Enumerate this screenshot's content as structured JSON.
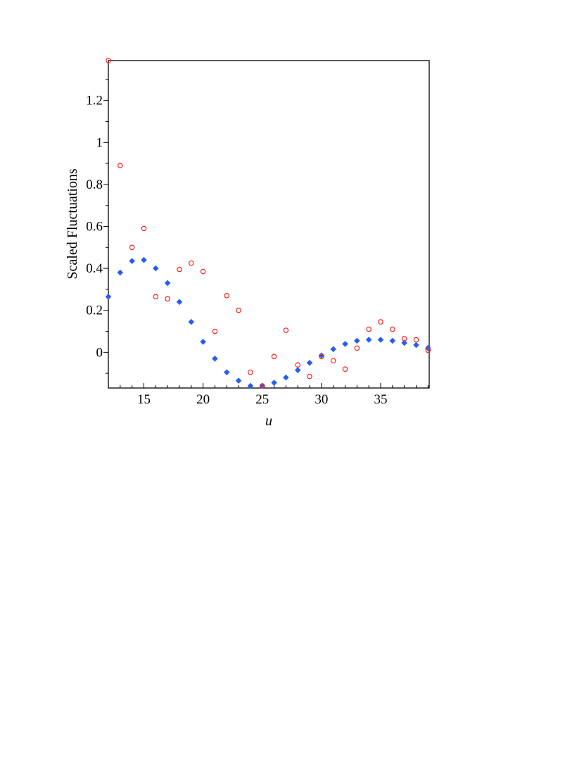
{
  "chart_data": {
    "type": "scatter",
    "title": "",
    "xlabel": "u",
    "ylabel": "Scaled Fluctuations",
    "xlim": [
      12,
      39.1
    ],
    "ylim": [
      -0.17,
      1.39
    ],
    "xticks": [
      15,
      20,
      25,
      30,
      35
    ],
    "xtick_labels": [
      "15",
      "20",
      "25",
      "30",
      "35"
    ],
    "yticks": [
      0,
      0.2,
      0.4,
      0.6,
      0.8,
      1,
      1.2
    ],
    "ytick_labels": [
      "0",
      "0.2",
      "0.4",
      "0.6",
      "0.8",
      "1",
      "1.2"
    ],
    "grid": false,
    "series": [
      {
        "marker": "diamond-filled",
        "color": "#2a5cf0",
        "x": [
          12,
          13,
          14,
          15,
          16,
          17,
          18,
          19,
          20,
          21,
          22,
          23,
          24,
          25,
          26,
          27,
          28,
          29,
          30,
          31,
          32,
          33,
          34,
          35,
          36,
          37,
          38,
          39
        ],
        "y": [
          0.265,
          0.38,
          0.435,
          0.44,
          0.4,
          0.33,
          0.24,
          0.145,
          0.05,
          -0.03,
          -0.095,
          -0.135,
          -0.16,
          -0.16,
          -0.145,
          -0.12,
          -0.085,
          -0.05,
          -0.015,
          0.015,
          0.04,
          0.055,
          0.06,
          0.06,
          0.055,
          0.045,
          0.035,
          0.02
        ]
      },
      {
        "marker": "circle-open",
        "color": "#ff2020",
        "x": [
          12,
          13,
          14,
          15,
          16,
          17,
          18,
          19,
          20,
          21,
          22,
          23,
          24,
          25,
          26,
          27,
          28,
          29,
          30,
          31,
          32,
          33,
          34,
          35,
          36,
          37,
          38,
          39
        ],
        "y": [
          1.39,
          0.89,
          0.5,
          0.59,
          0.265,
          0.255,
          0.395,
          0.425,
          0.385,
          0.1,
          0.27,
          0.2,
          -0.095,
          -0.16,
          -0.02,
          0.105,
          -0.06,
          -0.115,
          -0.02,
          -0.04,
          -0.08,
          0.02,
          0.11,
          0.145,
          0.11,
          0.065,
          0.06,
          0.01
        ]
      }
    ]
  }
}
